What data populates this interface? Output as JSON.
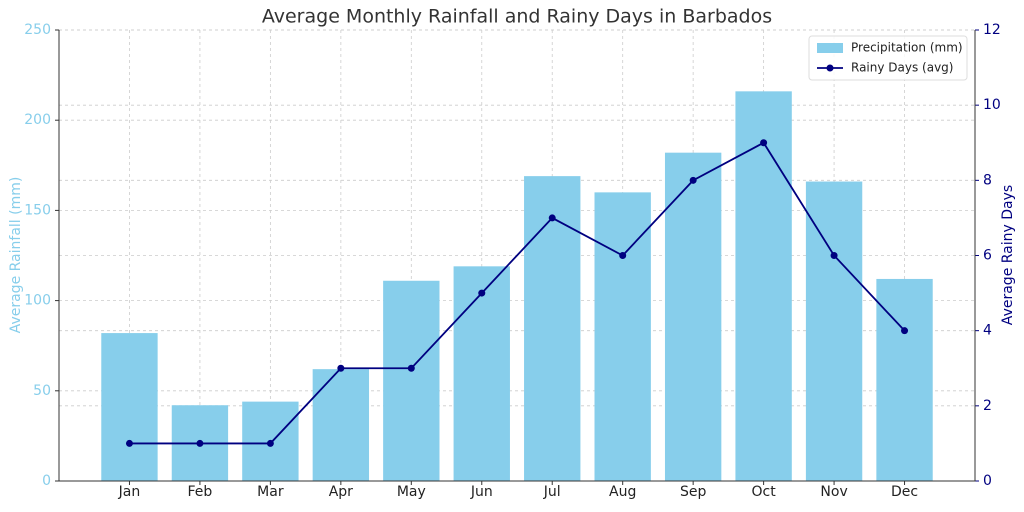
{
  "chart_data": {
    "type": "bar_line",
    "title": "Average Monthly Rainfall and Rainy Days in Barbados",
    "categories": [
      "Jan",
      "Feb",
      "Mar",
      "Apr",
      "May",
      "Jun",
      "Jul",
      "Aug",
      "Sep",
      "Oct",
      "Nov",
      "Dec"
    ],
    "y_label": "Average Rainfall (mm)",
    "y2_label": "Average Rainy Days",
    "series": [
      {
        "name": "Precipitation (mm)",
        "type": "bar",
        "color": "#87ceeb",
        "values": [
          82,
          42,
          44,
          62,
          111,
          119,
          169,
          160,
          182,
          216,
          166,
          112
        ]
      },
      {
        "name": "Rainy Days (avg)",
        "type": "line",
        "color": "#000080",
        "axis": "y2",
        "values": [
          1,
          1,
          1,
          3,
          3,
          5,
          7,
          6,
          8,
          9,
          6,
          4
        ]
      }
    ],
    "ylim": [
      0,
      250
    ],
    "yticks": [
      0,
      50,
      100,
      150,
      200,
      250
    ],
    "y2lim": [
      0,
      12
    ],
    "y2ticks": [
      0,
      2,
      4,
      6,
      8,
      10,
      12
    ],
    "grid": true,
    "legend": "upper-right"
  }
}
